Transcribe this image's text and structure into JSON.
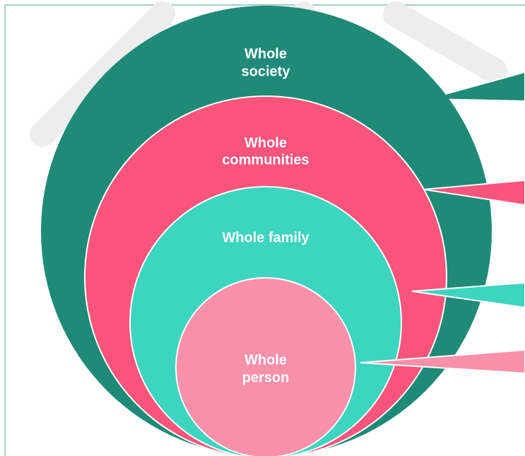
{
  "nodes": [
    {
      "label": [
        "Whole",
        "society"
      ]
    },
    {
      "label": [
        "Whole",
        "communities"
      ]
    },
    {
      "label": [
        "Whole family"
      ]
    },
    {
      "label": [
        "Whole",
        "person"
      ]
    }
  ]
}
